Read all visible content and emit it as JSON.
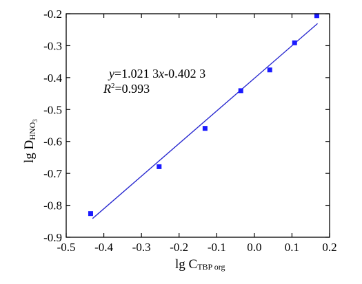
{
  "chart_data": {
    "type": "scatter",
    "title": "",
    "xlabel": {
      "main": "lg C",
      "sub": "TBP org"
    },
    "ylabel": {
      "main": "lg D",
      "sub": "HNO",
      "subsub": "3"
    },
    "xlim": [
      -0.5,
      0.2
    ],
    "ylim": [
      -0.9,
      -0.2
    ],
    "xticks": [
      -0.5,
      -0.4,
      -0.3,
      -0.2,
      -0.1,
      0.0,
      0.1,
      0.2
    ],
    "xtick_labels": [
      "-0.5",
      "-0.4",
      "-0.3",
      "-0.2",
      "-0.1",
      "0.0",
      "0.1",
      "0.2"
    ],
    "yticks": [
      -0.9,
      -0.8,
      -0.7,
      -0.6,
      -0.5,
      -0.4,
      -0.3,
      -0.2
    ],
    "ytick_labels": [
      "-0.9",
      "-0.8",
      "-0.7",
      "-0.6",
      "-0.5",
      "-0.4",
      "-0.3",
      "-0.2"
    ],
    "grid": false,
    "series": [
      {
        "marker": "square",
        "color": "#1a1aff",
        "points": [
          {
            "x": -0.435,
            "y": -0.826
          },
          {
            "x": -0.253,
            "y": -0.679
          },
          {
            "x": -0.131,
            "y": -0.559
          },
          {
            "x": -0.036,
            "y": -0.441
          },
          {
            "x": 0.041,
            "y": -0.376
          },
          {
            "x": 0.107,
            "y": -0.291
          },
          {
            "x": 0.166,
            "y": -0.206
          }
        ]
      }
    ],
    "fit_line": {
      "color": "#2a2ad0",
      "slope": 1.0213,
      "intercept": -0.4023,
      "x_range": [
        -0.43,
        0.168
      ]
    },
    "annotations": {
      "equation": {
        "y": "y",
        "eq": "=1.021 3",
        "x": "x",
        "rest": "-0.402 3"
      },
      "r2": {
        "R": "R",
        "sup": "2",
        "rest": "=0.993"
      }
    }
  }
}
